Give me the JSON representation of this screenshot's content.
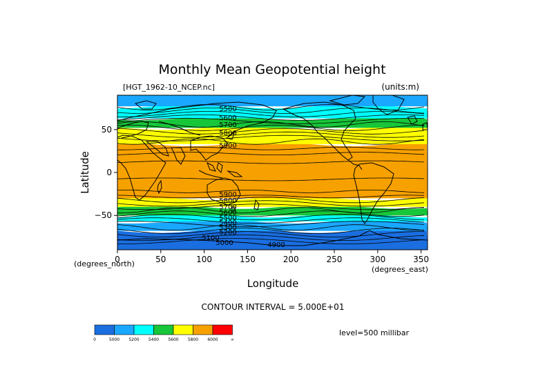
{
  "figure": {
    "title": "Monthly Mean Geopotential height",
    "dataset_label": "[HGT_1962-10_NCEP.nc]",
    "units_label": "(units:m)",
    "xlabel": "Longitude",
    "ylabel": "Latitude",
    "x_unit_label": "(degrees_east)",
    "y_unit_label": "(degrees_north)",
    "contour_interval_text": "CONTOUR INTERVAL = 5.000E+01",
    "level_text": "level=500 millibar"
  },
  "chart_data": {
    "type": "heatmap",
    "title": "Monthly Mean Geopotential height",
    "xlabel": "Longitude",
    "ylabel": "Latitude",
    "xlim": [
      0,
      357.5
    ],
    "ylim": [
      -90,
      90
    ],
    "x_ticks": [
      0,
      50,
      100,
      150,
      200,
      250,
      300,
      350
    ],
    "y_ticks": [
      50,
      0,
      -50
    ],
    "contour_interval": 50,
    "contour_labels": [
      "5500",
      "5600",
      "5700",
      "5800",
      "5900",
      "5900",
      "5800",
      "5700",
      "5600",
      "5500",
      "5400",
      "5300",
      "5200",
      "5100",
      "5000",
      "4900"
    ],
    "bands": [
      {
        "name": "south-polar",
        "lat": [
          -90,
          -68
        ],
        "color": "#1a6ee0"
      },
      {
        "name": "south-mid-blue",
        "lat": [
          -68,
          -57
        ],
        "color": "#1aa7ff"
      },
      {
        "name": "south-cyan",
        "lat": [
          -57,
          -50
        ],
        "color": "#00ffff"
      },
      {
        "name": "south-green",
        "lat": [
          -50,
          -40
        ],
        "color": "#17c639"
      },
      {
        "name": "south-yellow",
        "lat": [
          -40,
          -30
        ],
        "color": "#ffff00"
      },
      {
        "name": "tropical",
        "lat": [
          -30,
          33
        ],
        "color": "#f7a100"
      },
      {
        "name": "north-yellow",
        "lat": [
          33,
          52
        ],
        "color": "#ffff00"
      },
      {
        "name": "north-green",
        "lat": [
          52,
          63
        ],
        "color": "#17c639"
      },
      {
        "name": "north-cyan",
        "lat": [
          63,
          77
        ],
        "color": "#00ffff"
      },
      {
        "name": "north-polar",
        "lat": [
          77,
          90
        ],
        "color": "#1aa7ff"
      }
    ],
    "colorbar": {
      "colors": [
        "#1a6ee0",
        "#1aa7ff",
        "#00ffff",
        "#17c639",
        "#ffff00",
        "#f7a100",
        "#ff0000"
      ],
      "labels": [
        "0",
        "5000",
        "5200",
        "5400",
        "5600",
        "5800",
        "6000",
        "∞"
      ]
    }
  }
}
